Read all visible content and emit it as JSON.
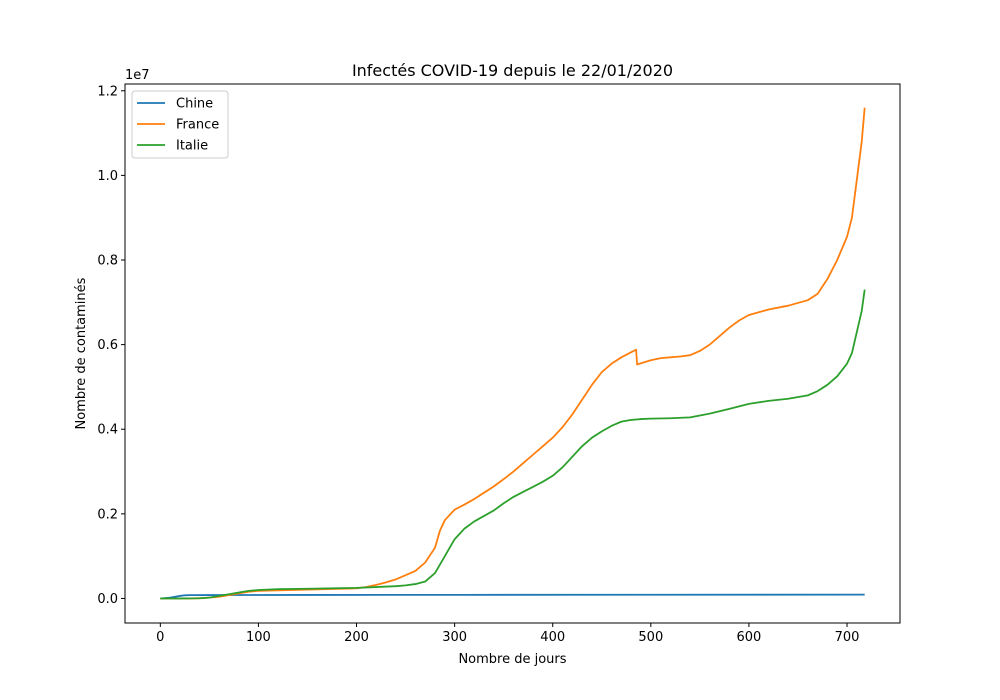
{
  "chart_data": {
    "type": "line",
    "title": "Infectés COVID-19 depuis le 22/01/2020",
    "xlabel": "Nombre de jours",
    "ylabel": "Nombre de contaminés",
    "y_offset_label": "1e7",
    "xlim": [
      -36,
      754
    ],
    "ylim": [
      -0.058,
      1.216
    ],
    "x_ticks": [
      0,
      100,
      200,
      300,
      400,
      500,
      600,
      700
    ],
    "x_tick_labels": [
      "0",
      "100",
      "200",
      "300",
      "400",
      "500",
      "600",
      "700"
    ],
    "y_ticks": [
      0.0,
      0.2,
      0.4,
      0.6,
      0.8,
      1.0,
      1.2
    ],
    "y_tick_labels": [
      "0.0",
      "0.2",
      "0.4",
      "0.6",
      "0.8",
      "1.0",
      "1.2"
    ],
    "legend_position": "top-left",
    "series": [
      {
        "name": "Chine",
        "color": "#1f77b4",
        "x": [
          0,
          10,
          20,
          25,
          30,
          50,
          80,
          150,
          300,
          500,
          718
        ],
        "y": [
          0.0,
          0.002,
          0.006,
          0.0075,
          0.0078,
          0.008,
          0.0082,
          0.0083,
          0.0085,
          0.0088,
          0.009
        ]
      },
      {
        "name": "France",
        "color": "#ff7f0e",
        "x": [
          0,
          30,
          45,
          60,
          70,
          80,
          90,
          100,
          150,
          200,
          210,
          220,
          230,
          240,
          250,
          260,
          270,
          280,
          285,
          290,
          300,
          310,
          320,
          330,
          340,
          350,
          360,
          370,
          380,
          390,
          400,
          410,
          420,
          430,
          440,
          450,
          460,
          470,
          480,
          485,
          486,
          490,
          500,
          510,
          520,
          530,
          540,
          550,
          560,
          570,
          580,
          590,
          600,
          620,
          640,
          660,
          670,
          680,
          690,
          700,
          705,
          710,
          715,
          718
        ],
        "y": [
          0.0,
          0.0,
          0.001,
          0.004,
          0.008,
          0.012,
          0.016,
          0.018,
          0.021,
          0.024,
          0.027,
          0.032,
          0.038,
          0.045,
          0.055,
          0.065,
          0.085,
          0.12,
          0.16,
          0.185,
          0.21,
          0.222,
          0.235,
          0.25,
          0.265,
          0.282,
          0.3,
          0.32,
          0.34,
          0.36,
          0.38,
          0.405,
          0.435,
          0.47,
          0.505,
          0.535,
          0.555,
          0.57,
          0.582,
          0.588,
          0.553,
          0.556,
          0.563,
          0.568,
          0.57,
          0.572,
          0.575,
          0.585,
          0.6,
          0.62,
          0.64,
          0.657,
          0.67,
          0.683,
          0.692,
          0.705,
          0.72,
          0.755,
          0.8,
          0.855,
          0.9,
          0.99,
          1.08,
          1.16
        ]
      },
      {
        "name": "Italie",
        "color": "#2ca02c",
        "x": [
          0,
          20,
          40,
          50,
          60,
          70,
          80,
          90,
          100,
          120,
          150,
          200,
          220,
          240,
          250,
          260,
          270,
          280,
          290,
          300,
          310,
          320,
          330,
          340,
          350,
          360,
          370,
          380,
          390,
          400,
          410,
          420,
          430,
          440,
          450,
          460,
          470,
          480,
          490,
          500,
          520,
          540,
          560,
          580,
          600,
          620,
          640,
          660,
          670,
          680,
          690,
          700,
          705,
          710,
          715,
          718
        ],
        "y": [
          0.0,
          0.0,
          0.0005,
          0.002,
          0.006,
          0.01,
          0.014,
          0.018,
          0.02,
          0.022,
          0.023,
          0.025,
          0.027,
          0.029,
          0.031,
          0.034,
          0.04,
          0.06,
          0.1,
          0.14,
          0.165,
          0.182,
          0.195,
          0.208,
          0.225,
          0.24,
          0.252,
          0.264,
          0.276,
          0.29,
          0.31,
          0.335,
          0.36,
          0.38,
          0.395,
          0.408,
          0.418,
          0.422,
          0.424,
          0.425,
          0.426,
          0.428,
          0.437,
          0.448,
          0.46,
          0.467,
          0.472,
          0.48,
          0.49,
          0.505,
          0.525,
          0.555,
          0.58,
          0.63,
          0.68,
          0.73
        ]
      }
    ]
  }
}
